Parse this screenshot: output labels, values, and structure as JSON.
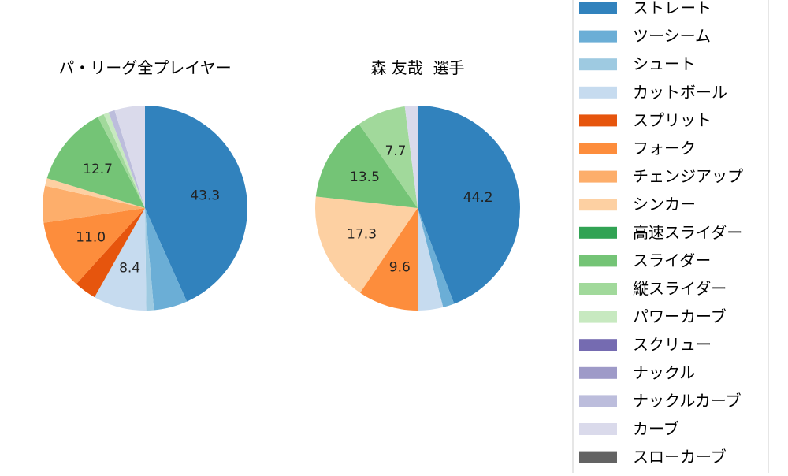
{
  "chart_data": [
    {
      "type": "pie",
      "title": "パ・リーグ全プレイヤー",
      "labels": [
        "ストレート",
        "ツーシーム",
        "シュート",
        "カットボール",
        "スプリット",
        "フォーク",
        "チェンジアップ",
        "シンカー",
        "高速スライダー",
        "スライダー",
        "縦スライダー",
        "パワーカーブ",
        "スクリュー",
        "ナックル",
        "ナックルカーブ",
        "カーブ",
        "スローカーブ"
      ],
      "values": [
        43.3,
        5.3,
        1.2,
        8.4,
        3.5,
        11.0,
        5.8,
        1.2,
        0.0,
        12.7,
        1.0,
        0.8,
        0.0,
        0.0,
        1.0,
        4.8,
        0.0
      ],
      "data_labels": [
        "43.3",
        "",
        "",
        "8.4",
        "",
        "11.0",
        "",
        "",
        "",
        "12.7",
        "",
        "",
        "",
        "",
        "",
        "",
        ""
      ]
    },
    {
      "type": "pie",
      "title": "森 友哉  選手",
      "labels": [
        "ストレート",
        "ツーシーム",
        "シュート",
        "カットボール",
        "スプリット",
        "フォーク",
        "チェンジアップ",
        "シンカー",
        "高速スライダー",
        "スライダー",
        "縦スライダー",
        "パワーカーブ",
        "スクリュー",
        "ナックル",
        "ナックルカーブ",
        "カーブ",
        "スローカーブ"
      ],
      "values": [
        44.2,
        1.8,
        0.0,
        3.9,
        0.0,
        9.6,
        0.0,
        17.3,
        0.0,
        13.5,
        7.7,
        0.0,
        0.0,
        0.0,
        0.0,
        2.0,
        0.0
      ],
      "data_labels": [
        "44.2",
        "",
        "",
        "",
        "",
        "9.6",
        "",
        "17.3",
        "",
        "13.5",
        "7.7",
        "",
        "",
        "",
        "",
        "",
        ""
      ]
    }
  ],
  "legend": {
    "placement": "right",
    "entries": [
      {
        "label": "ストレート",
        "color": "#3182bd"
      },
      {
        "label": "ツーシーム",
        "color": "#6baed6"
      },
      {
        "label": "シュート",
        "color": "#9ecae1"
      },
      {
        "label": "カットボール",
        "color": "#c6dbef"
      },
      {
        "label": "スプリット",
        "color": "#e6550d"
      },
      {
        "label": "フォーク",
        "color": "#fd8d3c"
      },
      {
        "label": "チェンジアップ",
        "color": "#fdae6b"
      },
      {
        "label": "シンカー",
        "color": "#fdd0a2"
      },
      {
        "label": "高速スライダー",
        "color": "#31a354"
      },
      {
        "label": "スライダー",
        "color": "#74c476"
      },
      {
        "label": "縦スライダー",
        "color": "#a1d99b"
      },
      {
        "label": "パワーカーブ",
        "color": "#c7e9c0"
      },
      {
        "label": "スクリュー",
        "color": "#756bb1"
      },
      {
        "label": "ナックル",
        "color": "#9e9ac8"
      },
      {
        "label": "ナックルカーブ",
        "color": "#bcbddc"
      },
      {
        "label": "カーブ",
        "color": "#dadaeb"
      },
      {
        "label": "スローカーブ",
        "color": "#636363"
      }
    ]
  }
}
